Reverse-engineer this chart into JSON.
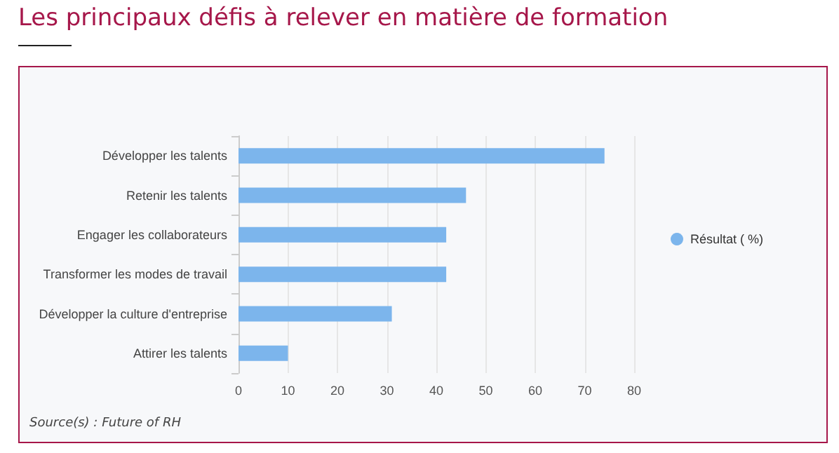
{
  "chart_data": {
    "type": "bar",
    "orientation": "horizontal",
    "title": "Les principaux défis à relever en matière de formation",
    "categories": [
      "Développer les talents",
      "Retenir les talents",
      "Engager les collaborateurs",
      "Transformer les modes de travail",
      "Développer la culture d'entreprise",
      "Attirer les talents"
    ],
    "series": [
      {
        "name": "Résultat ( %)",
        "color": "#7cb5ec",
        "values": [
          74,
          46,
          42,
          42,
          31,
          10
        ]
      }
    ],
    "xlim": [
      0,
      80
    ],
    "xticks": [
      0,
      10,
      20,
      30,
      40,
      50,
      60,
      70,
      80
    ],
    "grid": "x",
    "legend": "right",
    "annotations": [
      "Source(s) : Future of RH"
    ]
  }
}
